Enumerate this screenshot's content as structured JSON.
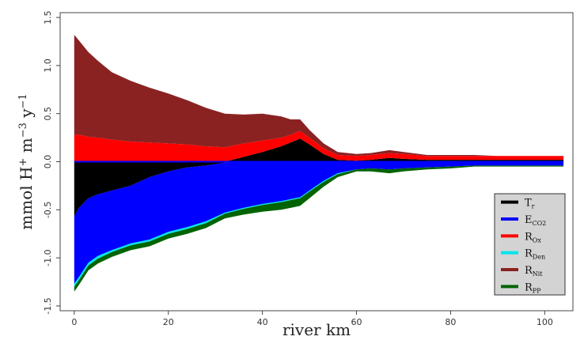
{
  "chart_data": {
    "type": "area",
    "title": "",
    "xlabel": "river km",
    "ylabel": "mmol H+ m−3 y−1",
    "ylabel_parts": {
      "base": "mmol H",
      "sup1": "+",
      "mid": " m",
      "sup2": "−3",
      "mid2": " y",
      "sup3": "−1"
    },
    "xlim": [
      -3,
      106
    ],
    "ylim": [
      -1.55,
      1.55
    ],
    "x_ticks": [
      0,
      20,
      40,
      60,
      80,
      100
    ],
    "y_ticks": [
      -1.5,
      -1.0,
      -0.5,
      0.0,
      0.5,
      1.0,
      1.5
    ],
    "y_tick_labels": [
      "-1.5",
      "-1.0",
      "-0.5",
      "0.0",
      "0.5",
      "1.0",
      "1.5"
    ],
    "grid": false,
    "legend_position": "bottom-right",
    "x": [
      0,
      1,
      3,
      5,
      8,
      12,
      16,
      20,
      24,
      28,
      32,
      36,
      40,
      44,
      46,
      48,
      50,
      53,
      56,
      60,
      63,
      67,
      70,
      75,
      80,
      85,
      90,
      95,
      100,
      104
    ],
    "positive_stack": [
      {
        "name": "Tr",
        "sub": "",
        "color": "#000000",
        "values": [
          0,
          0,
          0,
          0,
          0,
          0,
          0,
          0,
          0,
          0,
          0,
          0.05,
          0.1,
          0.16,
          0.2,
          0.24,
          0.18,
          0.08,
          0.02,
          0.01,
          0.02,
          0.04,
          0.03,
          0.02,
          0.02,
          0.02,
          0.02,
          0.02,
          0.02,
          0.02
        ]
      },
      {
        "name": "ROx",
        "sub": "",
        "color": "#ff0000",
        "values": [
          0.28,
          0.28,
          0.26,
          0.25,
          0.23,
          0.21,
          0.2,
          0.19,
          0.18,
          0.16,
          0.15,
          0.14,
          0.12,
          0.09,
          0.08,
          0.08,
          0.07,
          0.06,
          0.05,
          0.05,
          0.05,
          0.05,
          0.05,
          0.04,
          0.04,
          0.04,
          0.04,
          0.04,
          0.04,
          0.04
        ]
      },
      {
        "name": "RNit",
        "sub": "",
        "color": "#8b2222",
        "values": [
          1.04,
          0.98,
          0.88,
          0.8,
          0.7,
          0.63,
          0.57,
          0.52,
          0.46,
          0.4,
          0.35,
          0.3,
          0.28,
          0.22,
          0.16,
          0.12,
          0.08,
          0.05,
          0.03,
          0.02,
          0.02,
          0.03,
          0.02,
          0.01,
          0.01,
          0.01,
          0.0,
          0.0,
          0.0,
          0.0
        ]
      }
    ],
    "negative_stack": [
      {
        "name": "Tr",
        "sub": "",
        "color": "#000000",
        "values": [
          -0.57,
          -0.48,
          -0.38,
          -0.34,
          -0.3,
          -0.25,
          -0.16,
          -0.1,
          -0.06,
          -0.04,
          -0.01,
          0,
          0,
          0,
          0,
          0,
          0,
          0,
          0,
          0,
          0,
          0,
          0,
          0,
          0,
          0,
          0,
          0,
          0,
          0
        ]
      },
      {
        "name": "ECO2",
        "sub": "CO2",
        "color": "#0000ff",
        "values": [
          -0.7,
          -0.72,
          -0.67,
          -0.64,
          -0.62,
          -0.6,
          -0.65,
          -0.63,
          -0.62,
          -0.58,
          -0.52,
          -0.48,
          -0.44,
          -0.41,
          -0.39,
          -0.37,
          -0.3,
          -0.2,
          -0.12,
          -0.08,
          -0.07,
          -0.08,
          -0.07,
          -0.06,
          -0.05,
          -0.04,
          -0.04,
          -0.04,
          -0.04,
          -0.04
        ]
      },
      {
        "name": "RDen",
        "sub": "",
        "color": "#00e5ee",
        "values": [
          -0.03,
          -0.03,
          -0.03,
          -0.03,
          -0.02,
          -0.02,
          -0.02,
          -0.02,
          -0.02,
          -0.02,
          -0.01,
          -0.01,
          -0.01,
          -0.01,
          -0.01,
          -0.01,
          -0.01,
          -0.01,
          -0.01,
          -0.0,
          -0.0,
          -0.0,
          -0.0,
          -0.0,
          -0.0,
          -0.0,
          -0.0,
          -0.0,
          -0.0,
          -0.0
        ]
      },
      {
        "name": "Rpp",
        "sub": "",
        "color": "#006400",
        "values": [
          -0.05,
          -0.05,
          -0.05,
          -0.05,
          -0.05,
          -0.05,
          -0.05,
          -0.05,
          -0.05,
          -0.05,
          -0.05,
          -0.06,
          -0.07,
          -0.08,
          -0.08,
          -0.08,
          -0.07,
          -0.05,
          -0.03,
          -0.02,
          -0.03,
          -0.04,
          -0.03,
          -0.02,
          -0.02,
          -0.01,
          -0.01,
          -0.01,
          -0.01,
          -0.01
        ]
      }
    ],
    "zero_line": true,
    "legend": [
      {
        "label": "T",
        "sub": "r",
        "color": "#000000"
      },
      {
        "label": "E",
        "sub": "CO2",
        "color": "#0000ff"
      },
      {
        "label": "R",
        "sub": "Ox",
        "color": "#ff0000"
      },
      {
        "label": "R",
        "sub": "Den",
        "color": "#00e5ee"
      },
      {
        "label": "R",
        "sub": "Nit",
        "color": "#8b2222"
      },
      {
        "label": "R",
        "sub": "PP",
        "color": "#006400"
      }
    ]
  }
}
